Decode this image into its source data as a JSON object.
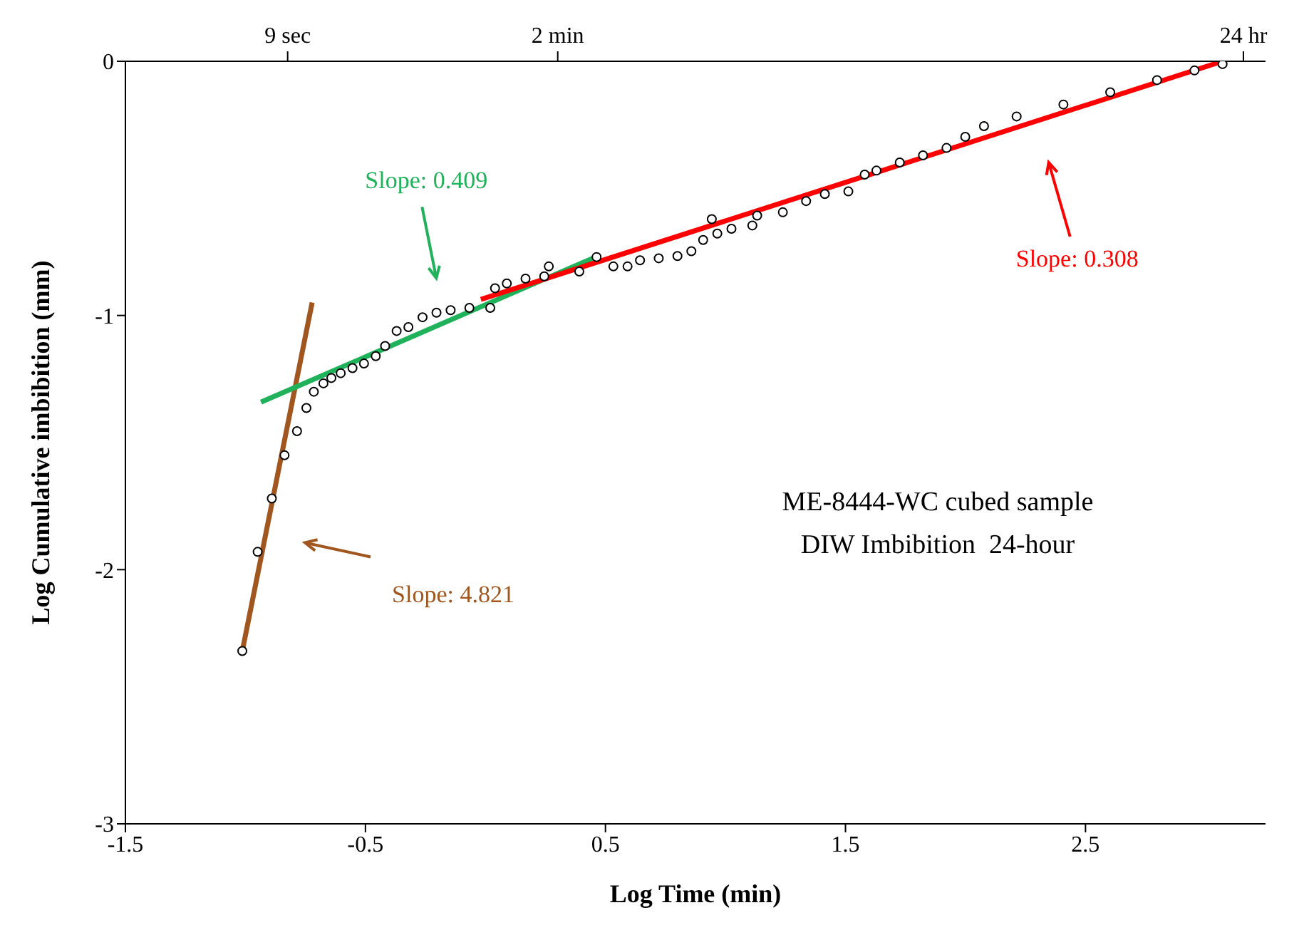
{
  "chart_data": {
    "type": "scatter",
    "xlabel": "Log Time (min)",
    "ylabel": "Log Cumulative imbibition (mm)",
    "xlim": [
      -1.5,
      3.25
    ],
    "xticks": [
      -1.5,
      -0.5,
      0.5,
      1.5,
      2.5
    ],
    "ylim": [
      -3,
      0
    ],
    "yticks": [
      -3,
      -2,
      -1,
      0
    ],
    "grid": false,
    "legend": false,
    "line_style": "solid",
    "annotations": [
      "ME-8444-WC cubed sample",
      "DIW Imbibition  24-hour",
      "9 sec",
      "2 min",
      "24 hr"
    ],
    "series": [
      {
        "type": "scatter",
        "marker": "circle",
        "color": "#000000",
        "x": [
          -1.013,
          -0.949,
          -0.89,
          -0.837,
          -0.785,
          -0.746,
          -0.715,
          -0.675,
          -0.642,
          -0.603,
          -0.554,
          -0.506,
          -0.457,
          -0.418,
          -0.37,
          -0.321,
          -0.262,
          -0.204,
          -0.145,
          -0.067,
          0.02,
          0.04,
          0.089,
          0.167,
          0.245,
          0.264,
          0.391,
          0.463,
          0.533,
          0.592,
          0.644,
          0.722,
          0.8,
          0.858,
          0.907,
          0.943,
          0.966,
          1.025,
          1.112,
          1.132,
          1.239,
          1.336,
          1.414,
          1.512,
          1.58,
          1.629,
          1.726,
          1.823,
          1.921,
          1.999,
          2.077,
          2.213,
          2.408,
          2.603,
          2.798,
          2.954,
          3.071
        ],
        "values": [
          -2.32,
          -1.93,
          -1.72,
          -1.55,
          -1.455,
          -1.364,
          -1.3,
          -1.267,
          -1.246,
          -1.227,
          -1.207,
          -1.189,
          -1.16,
          -1.12,
          -1.061,
          -1.046,
          -1.007,
          -0.989,
          -0.979,
          -0.97,
          -0.97,
          -0.893,
          -0.874,
          -0.855,
          -0.846,
          -0.807,
          -0.827,
          -0.77,
          -0.807,
          -0.807,
          -0.783,
          -0.775,
          -0.766,
          -0.747,
          -0.703,
          -0.621,
          -0.678,
          -0.659,
          -0.646,
          -0.607,
          -0.594,
          -0.55,
          -0.522,
          -0.512,
          -0.446,
          -0.43,
          -0.398,
          -0.37,
          -0.341,
          -0.297,
          -0.255,
          -0.217,
          -0.17,
          -0.122,
          -0.074,
          -0.036,
          -0.011
        ]
      },
      {
        "type": "line",
        "name": "Slope: 4.821",
        "color": "#a0561e",
        "x": [
          -1.013,
          -0.722
        ],
        "values": [
          -2.32,
          -0.949
        ]
      },
      {
        "type": "line",
        "name": "Slope: 0.409",
        "color": "#1fb25a",
        "x": [
          -0.935,
          0.459
        ],
        "values": [
          -1.341,
          -0.77
        ]
      },
      {
        "type": "line",
        "name": "Slope: 0.308",
        "color": "#ff0000",
        "x": [
          -0.019,
          3.071
        ],
        "values": [
          -0.937,
          0
        ]
      }
    ]
  }
}
